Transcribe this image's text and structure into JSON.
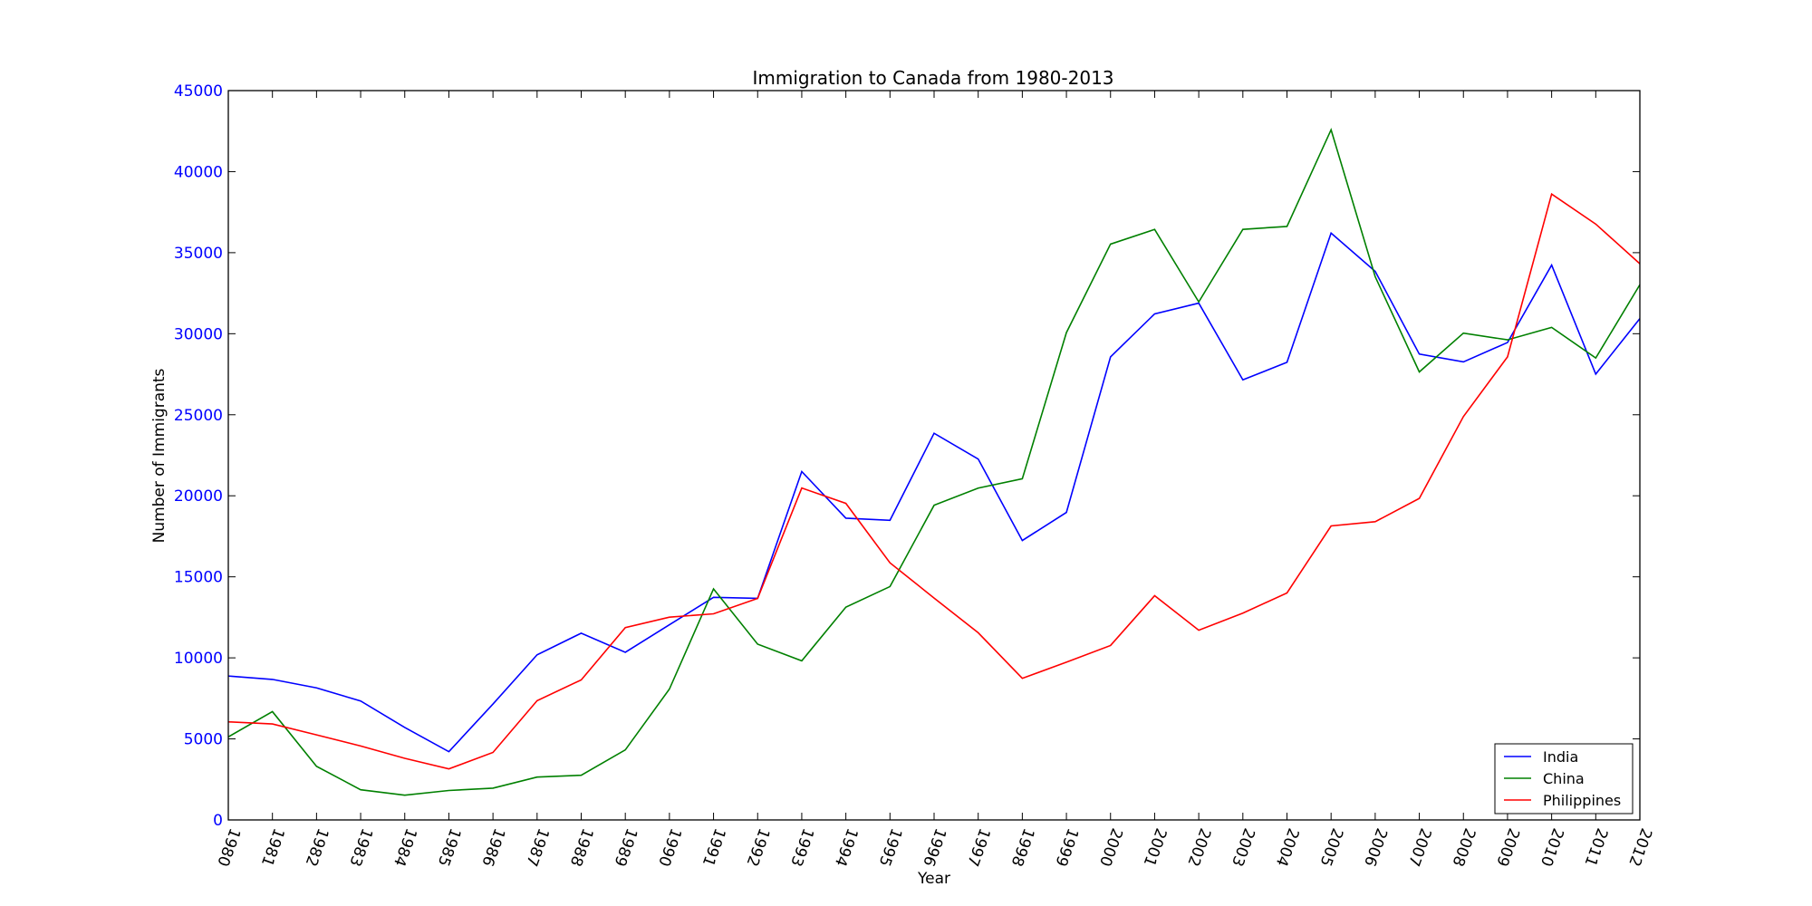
{
  "chart_data": {
    "type": "line",
    "title": "Immigration to Canada from 1980-2013",
    "xlabel": "Year",
    "ylabel": "Number of Immigrants",
    "x": [
      "1980",
      "1981",
      "1982",
      "1983",
      "1984",
      "1985",
      "1986",
      "1987",
      "1988",
      "1989",
      "1990",
      "1991",
      "1992",
      "1993",
      "1994",
      "1995",
      "1996",
      "1997",
      "1998",
      "1999",
      "2000",
      "2001",
      "2002",
      "2003",
      "2004",
      "2005",
      "2006",
      "2007",
      "2008",
      "2009",
      "2010",
      "2011",
      "2012"
    ],
    "xlim": [
      1980,
      2012
    ],
    "ylim": [
      0,
      45000
    ],
    "yticks": [
      "0",
      "5000",
      "10000",
      "15000",
      "20000",
      "25000",
      "30000",
      "35000",
      "40000",
      "45000"
    ],
    "grid": false,
    "legend_position": "bottom-right",
    "series": [
      {
        "name": "India",
        "color": "#0000ff",
        "values": [
          8880,
          8670,
          8147,
          7338,
          5704,
          4211,
          7150,
          10189,
          11522,
          10343,
          12041,
          13734,
          13673,
          21496,
          18620,
          18489,
          23859,
          22268,
          17241,
          18974,
          28572,
          31223,
          31889,
          27155,
          28235,
          36210,
          33848,
          28742,
          28261,
          29456,
          34235,
          27509,
          30933
        ]
      },
      {
        "name": "China",
        "color": "#008000",
        "values": [
          5123,
          6682,
          3308,
          1863,
          1527,
          1816,
          1960,
          2643,
          2758,
          4323,
          8076,
          14255,
          10846,
          9817,
          13128,
          14398,
          19415,
          20475,
          21049,
          30069,
          35529,
          36434,
          31961,
          36439,
          36619,
          42584,
          33518,
          27642,
          30037,
          29622,
          30391,
          28502,
          33024
        ]
      },
      {
        "name": "Philippines",
        "color": "#ff0000",
        "values": [
          6051,
          5921,
          5249,
          4562,
          3801,
          3150,
          4166,
          7360,
          8639,
          11865,
          12509,
          12718,
          13670,
          20479,
          19532,
          15864,
          13692,
          11549,
          8735,
          9734,
          10763,
          13836,
          11707,
          12758,
          14004,
          18139,
          18400,
          19837,
          24887,
          28573,
          38617,
          36765,
          34315
        ]
      }
    ]
  }
}
